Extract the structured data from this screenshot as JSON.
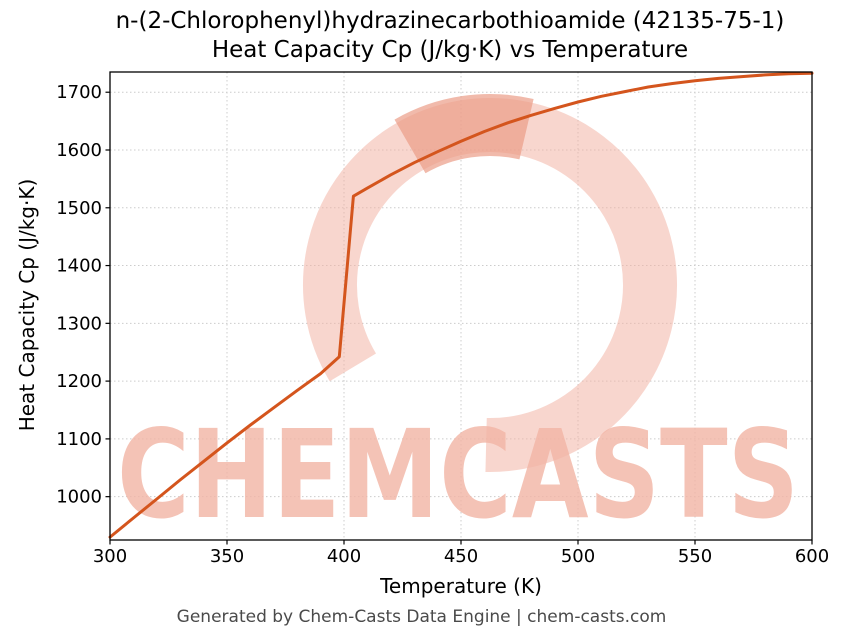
{
  "figure": {
    "title_line1": "n-(2-Chlorophenyl)hydrazinecarbothioamide (42135-75-1)",
    "title_line2": "Heat Capacity Cp (J/kg·K) vs Temperature",
    "footer": "Generated by Chem-Casts Data Engine | chem-casts.com",
    "watermark_text": "CHEMCASTS",
    "colors": {
      "line": "#d4551d",
      "grid": "#cccccc",
      "watermark": "#f2b5a5",
      "watermark_dark": "#eb9c88",
      "axis": "#000000",
      "footer_text": "#4a4a4a"
    }
  },
  "chart_data": {
    "type": "line",
    "title": "n-(2-Chlorophenyl)hydrazinecarbothioamide (42135-75-1) Heat Capacity Cp (J/kg·K) vs Temperature",
    "xlabel": "Temperature (K)",
    "ylabel": "Heat Capacity Cp (J/kg·K)",
    "xlim": [
      300,
      600
    ],
    "ylim": [
      925,
      1735
    ],
    "xticks": [
      300,
      350,
      400,
      450,
      500,
      550,
      600
    ],
    "yticks": [
      1000,
      1100,
      1200,
      1300,
      1400,
      1500,
      1600,
      1700
    ],
    "grid": true,
    "legend": false,
    "series": [
      {
        "name": "Heat Capacity Cp",
        "x": [
          300,
          310,
          320,
          330,
          340,
          350,
          360,
          370,
          380,
          390,
          398,
          404,
          410,
          420,
          430,
          440,
          450,
          460,
          470,
          480,
          490,
          500,
          510,
          520,
          530,
          540,
          550,
          560,
          570,
          580,
          590,
          600
        ],
        "y": [
          930,
          963,
          996,
          1029,
          1061,
          1093,
          1124,
          1154,
          1184,
          1213,
          1242,
          1520,
          1534,
          1557,
          1578,
          1597,
          1615,
          1632,
          1647,
          1660,
          1672,
          1683,
          1693,
          1701,
          1709,
          1715,
          1720,
          1724,
          1727,
          1730,
          1732,
          1733
        ]
      }
    ]
  }
}
